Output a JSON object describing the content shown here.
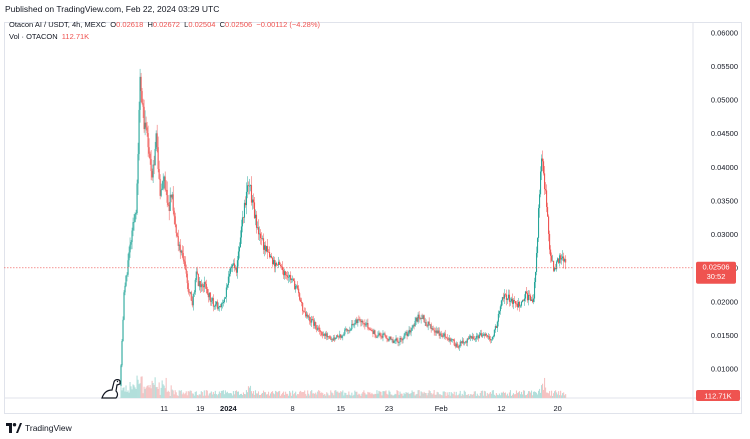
{
  "header": {
    "published": "Published on TradingView.com, Feb 22, 2024 03:29 UTC"
  },
  "legend": {
    "symbol": "Otacon AI / USDT, 4h, MEXC",
    "open_label": "O",
    "open": "0.02618",
    "high_label": "H",
    "high": "0.02672",
    "low_label": "L",
    "low": "0.02504",
    "close_label": "C",
    "close": "0.02506",
    "change": "−0.00112 (−4.28%)",
    "volume_label": "Vol · OTACON",
    "volume": "112.71K"
  },
  "price_tag": {
    "price": "0.02506",
    "countdown": "30:52"
  },
  "volume_tag": "112.71K",
  "footer": {
    "brand": "TradingView",
    "logo": "tradingview-logo-icon"
  },
  "colors": {
    "up": "#26a69a",
    "down": "#ef5350",
    "last_price_line": "#ef5350",
    "volume_up": "#b2dfdb",
    "volume_down": "#f5c2c2"
  },
  "chart_data": {
    "type": "candlestick",
    "x_ticks": [
      "11",
      "19",
      "2024",
      "8",
      "15",
      "23",
      "Feb",
      "12",
      "20"
    ],
    "y_ticks": [
      "0.01000",
      "0.01500",
      "0.02000",
      "0.02500",
      "0.03000",
      "0.03500",
      "0.04000",
      "0.04500",
      "0.05000",
      "0.05500",
      "0.06000"
    ],
    "ylim": [
      0.0057,
      0.0616
    ],
    "last_price": 0.02506,
    "x_range": [
      0,
      135
    ],
    "tick_positions": [
      11,
      20,
      27,
      43,
      55,
      67,
      80,
      95,
      109
    ],
    "close_path": [
      [
        0,
        0.0075
      ],
      [
        1,
        0.021
      ],
      [
        2,
        0.026
      ],
      [
        3,
        0.03
      ],
      [
        4,
        0.034
      ],
      [
        5,
        0.052
      ],
      [
        6,
        0.047
      ],
      [
        7,
        0.044
      ],
      [
        8,
        0.039
      ],
      [
        9,
        0.044
      ],
      [
        10,
        0.035
      ],
      [
        11,
        0.038
      ],
      [
        12,
        0.034
      ],
      [
        13,
        0.036
      ],
      [
        14,
        0.03
      ],
      [
        15,
        0.028
      ],
      [
        16,
        0.026
      ],
      [
        17,
        0.022
      ],
      [
        18,
        0.02
      ],
      [
        19,
        0.024
      ],
      [
        20,
        0.022
      ],
      [
        21,
        0.023
      ],
      [
        22,
        0.021
      ],
      [
        23,
        0.02
      ],
      [
        24,
        0.0195
      ],
      [
        25,
        0.019
      ],
      [
        26,
        0.02
      ],
      [
        27,
        0.024
      ],
      [
        28,
        0.026
      ],
      [
        29,
        0.025
      ],
      [
        30,
        0.03
      ],
      [
        31,
        0.034
      ],
      [
        32,
        0.038
      ],
      [
        33,
        0.035
      ],
      [
        34,
        0.031
      ],
      [
        35,
        0.03
      ],
      [
        36,
        0.028
      ],
      [
        37,
        0.027
      ],
      [
        38,
        0.026
      ],
      [
        39,
        0.0255
      ],
      [
        40,
        0.025
      ],
      [
        41,
        0.0245
      ],
      [
        42,
        0.024
      ],
      [
        43,
        0.023
      ],
      [
        44,
        0.022
      ],
      [
        45,
        0.02
      ],
      [
        46,
        0.018
      ],
      [
        47,
        0.0175
      ],
      [
        48,
        0.017
      ],
      [
        49,
        0.016
      ],
      [
        50,
        0.0155
      ],
      [
        51,
        0.015
      ],
      [
        52,
        0.015
      ],
      [
        53,
        0.0145
      ],
      [
        54,
        0.015
      ],
      [
        55,
        0.015
      ],
      [
        56,
        0.0155
      ],
      [
        57,
        0.016
      ],
      [
        58,
        0.0165
      ],
      [
        59,
        0.017
      ],
      [
        60,
        0.0175
      ],
      [
        61,
        0.017
      ],
      [
        62,
        0.016
      ],
      [
        63,
        0.0155
      ],
      [
        64,
        0.015
      ],
      [
        65,
        0.015
      ],
      [
        66,
        0.0148
      ],
      [
        67,
        0.0145
      ],
      [
        68,
        0.014
      ],
      [
        69,
        0.0142
      ],
      [
        70,
        0.0145
      ],
      [
        71,
        0.015
      ],
      [
        72,
        0.0155
      ],
      [
        73,
        0.0165
      ],
      [
        74,
        0.0175
      ],
      [
        75,
        0.018
      ],
      [
        76,
        0.017
      ],
      [
        77,
        0.0165
      ],
      [
        78,
        0.016
      ],
      [
        79,
        0.0155
      ],
      [
        80,
        0.015
      ],
      [
        81,
        0.015
      ],
      [
        82,
        0.0145
      ],
      [
        83,
        0.014
      ],
      [
        84,
        0.0135
      ],
      [
        85,
        0.0138
      ],
      [
        86,
        0.014
      ],
      [
        87,
        0.0145
      ],
      [
        88,
        0.0148
      ],
      [
        89,
        0.015
      ],
      [
        90,
        0.015
      ],
      [
        91,
        0.0148
      ],
      [
        92,
        0.0145
      ],
      [
        93,
        0.015
      ],
      [
        94,
        0.017
      ],
      [
        95,
        0.02
      ],
      [
        96,
        0.021
      ],
      [
        97,
        0.0205
      ],
      [
        98,
        0.02
      ],
      [
        99,
        0.0195
      ],
      [
        100,
        0.02
      ],
      [
        101,
        0.021
      ],
      [
        102,
        0.0205
      ],
      [
        103,
        0.02
      ],
      [
        104,
        0.03
      ],
      [
        105,
        0.042
      ],
      [
        106,
        0.036
      ],
      [
        107,
        0.028
      ],
      [
        108,
        0.025
      ],
      [
        109,
        0.026
      ],
      [
        110,
        0.027
      ],
      [
        111,
        0.0251
      ]
    ],
    "grid": false
  }
}
